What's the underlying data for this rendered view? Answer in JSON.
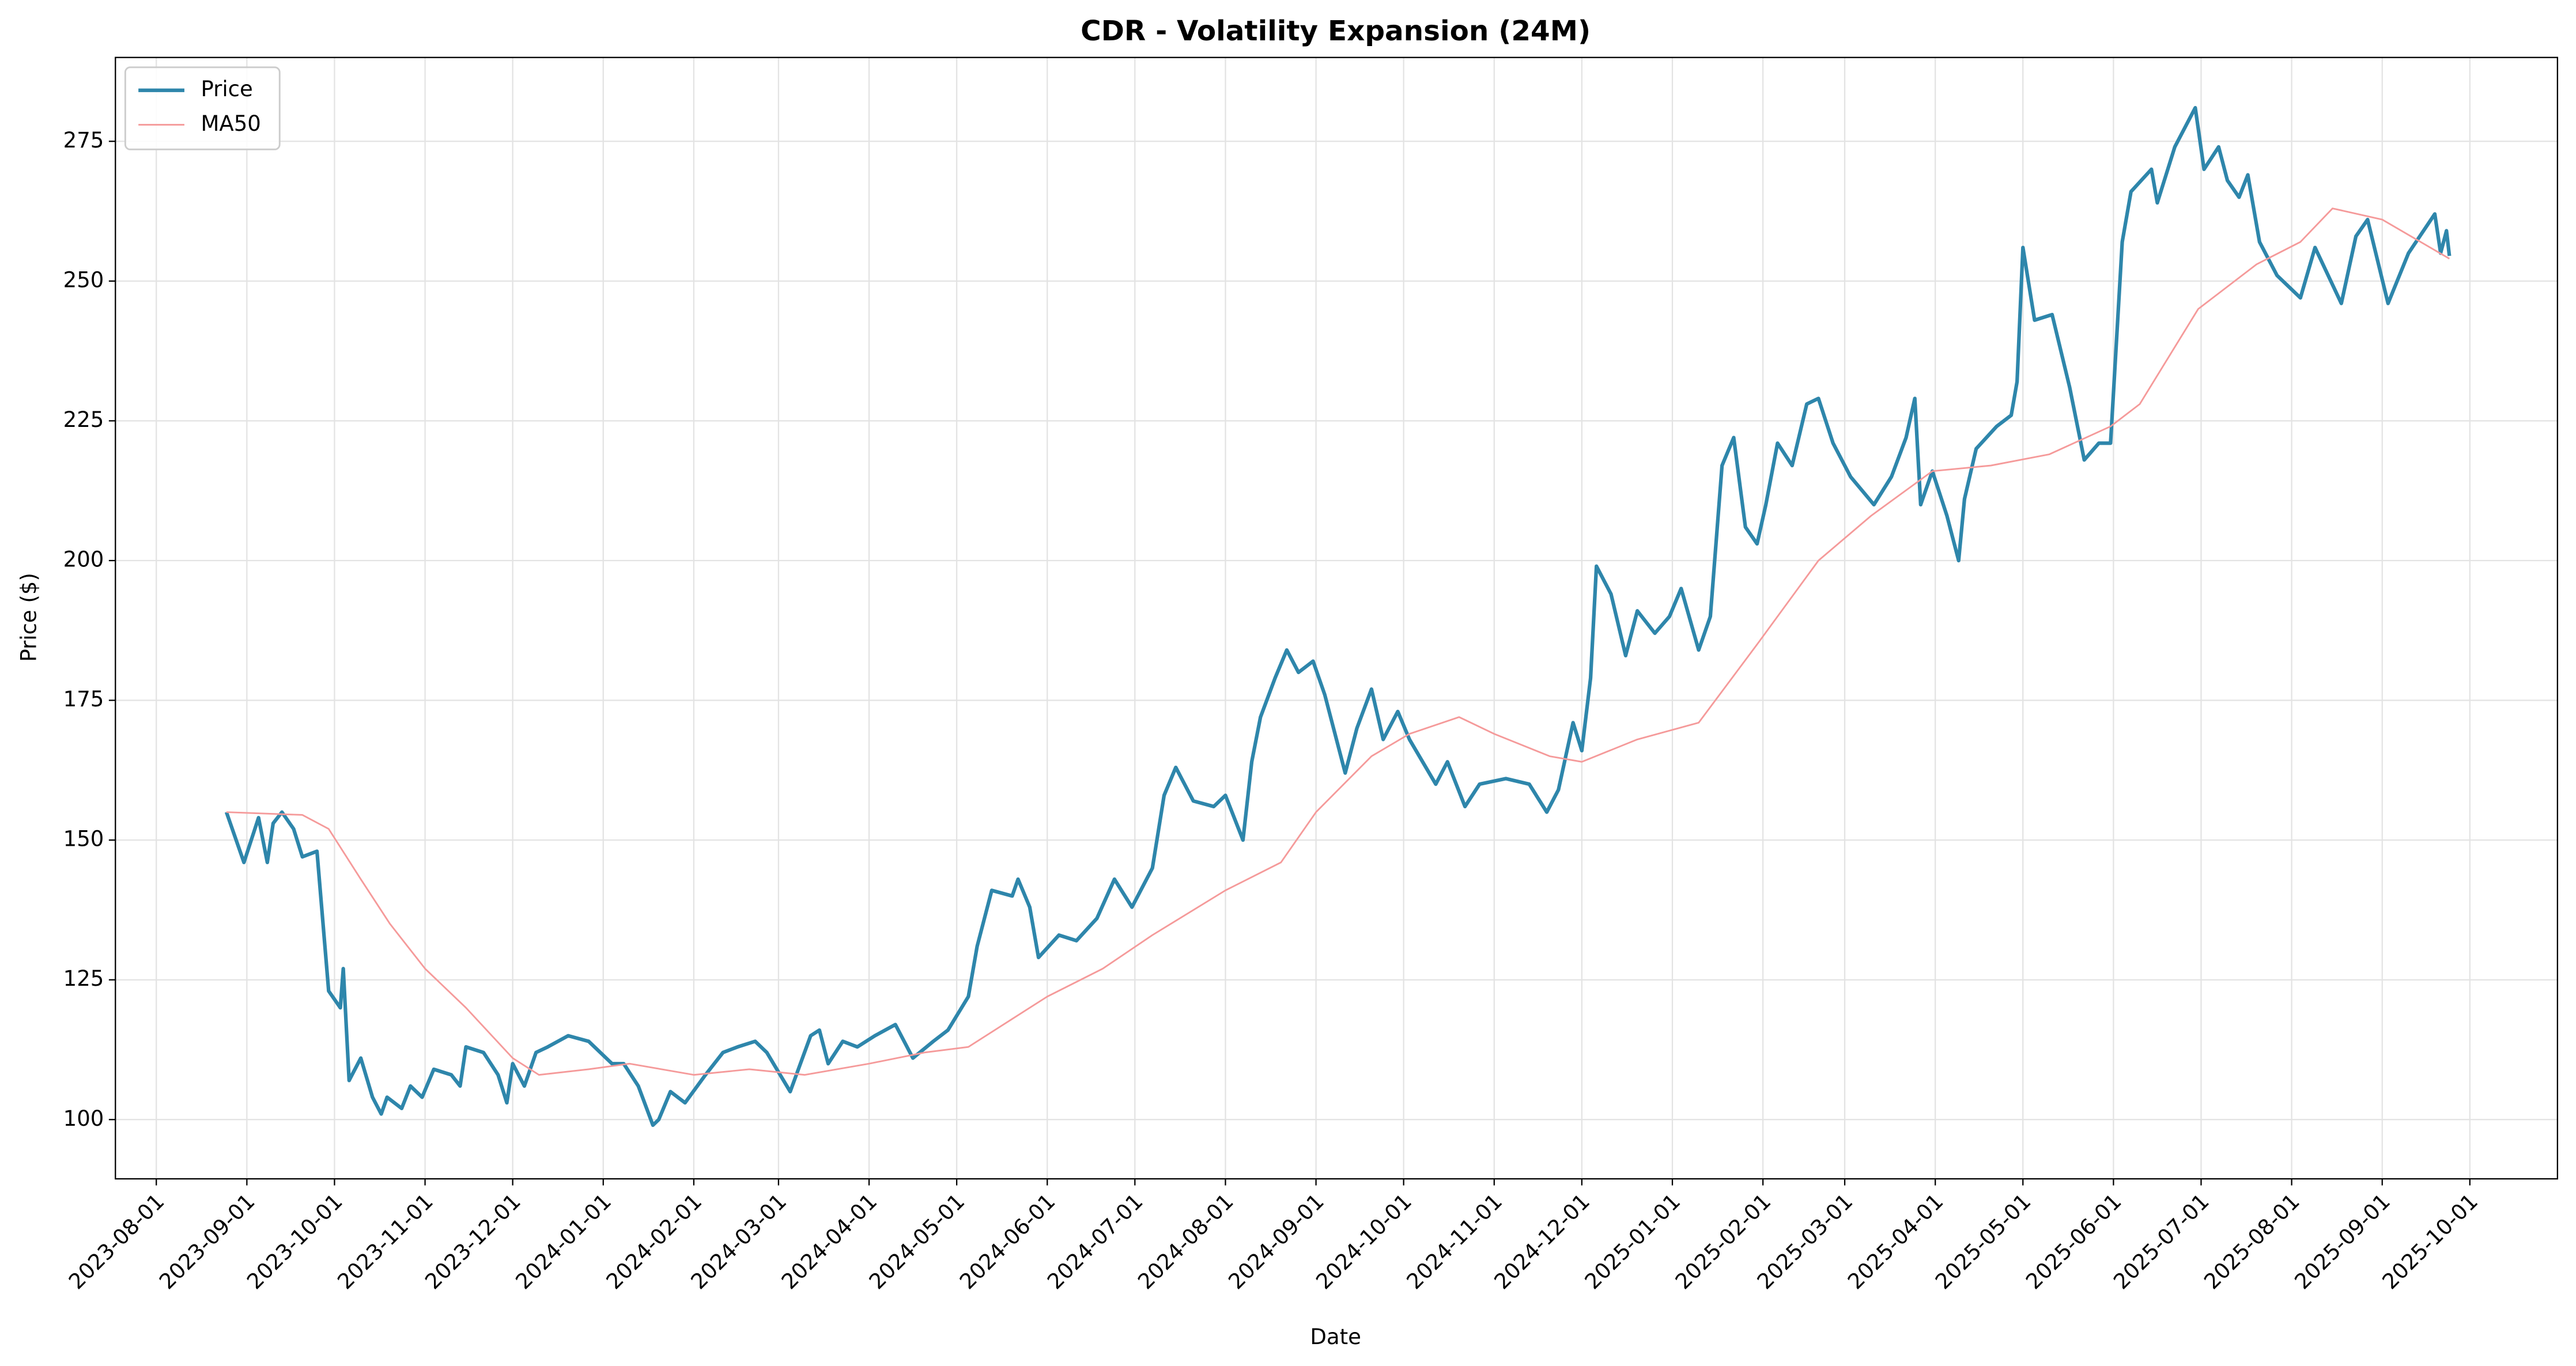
{
  "chart_data": {
    "type": "line",
    "title": "CDR - Volatility Expansion (24M)",
    "xlabel": "Date",
    "ylabel": "Price ($)",
    "xlim": [
      "2023-07-18",
      "2025-10-31"
    ],
    "ylim": [
      89.4,
      290
    ],
    "xticks": [
      "2023-08-01",
      "2023-09-01",
      "2023-10-01",
      "2023-11-01",
      "2023-12-01",
      "2024-01-01",
      "2024-02-01",
      "2024-03-01",
      "2024-04-01",
      "2024-05-01",
      "2024-06-01",
      "2024-07-01",
      "2024-08-01",
      "2024-09-01",
      "2024-10-01",
      "2024-11-01",
      "2024-12-01",
      "2025-01-01",
      "2025-02-01",
      "2025-03-01",
      "2025-04-01",
      "2025-05-01",
      "2025-06-01",
      "2025-07-01",
      "2025-08-01",
      "2025-09-01",
      "2025-10-01"
    ],
    "yticks": [
      100,
      125,
      150,
      175,
      200,
      225,
      250,
      275
    ],
    "grid": true,
    "legend": "upper left",
    "series": [
      {
        "name": "Price",
        "color": "#2e86ab",
        "width": 2.2,
        "x": [
          "2023-08-25",
          "2023-08-31",
          "2023-09-05",
          "2023-09-08",
          "2023-09-10",
          "2023-09-13",
          "2023-09-17",
          "2023-09-20",
          "2023-09-25",
          "2023-09-29",
          "2023-10-03",
          "2023-10-04",
          "2023-10-06",
          "2023-10-10",
          "2023-10-14",
          "2023-10-17",
          "2023-10-19",
          "2023-10-24",
          "2023-10-27",
          "2023-10-31",
          "2023-11-04",
          "2023-11-10",
          "2023-11-13",
          "2023-11-15",
          "2023-11-21",
          "2023-11-26",
          "2023-11-29",
          "2023-12-01",
          "2023-12-05",
          "2023-12-09",
          "2023-12-13",
          "2023-12-20",
          "2023-12-27",
          "2024-01-04",
          "2024-01-08",
          "2024-01-13",
          "2024-01-18",
          "2024-01-20",
          "2024-01-24",
          "2024-01-29",
          "2024-02-05",
          "2024-02-11",
          "2024-02-16",
          "2024-02-22",
          "2024-02-26",
          "2024-03-05",
          "2024-03-12",
          "2024-03-15",
          "2024-03-18",
          "2024-03-23",
          "2024-03-28",
          "2024-04-03",
          "2024-04-10",
          "2024-04-16",
          "2024-04-23",
          "2024-04-28",
          "2024-05-05",
          "2024-05-08",
          "2024-05-13",
          "2024-05-20",
          "2024-05-22",
          "2024-05-26",
          "2024-05-29",
          "2024-06-05",
          "2024-06-11",
          "2024-06-18",
          "2024-06-24",
          "2024-06-30",
          "2024-07-07",
          "2024-07-11",
          "2024-07-15",
          "2024-07-21",
          "2024-07-28",
          "2024-08-01",
          "2024-08-07",
          "2024-08-10",
          "2024-08-13",
          "2024-08-18",
          "2024-08-22",
          "2024-08-26",
          "2024-08-31",
          "2024-09-04",
          "2024-09-11",
          "2024-09-15",
          "2024-09-20",
          "2024-09-24",
          "2024-09-29",
          "2024-10-03",
          "2024-10-12",
          "2024-10-16",
          "2024-10-22",
          "2024-10-27",
          "2024-11-05",
          "2024-11-13",
          "2024-11-19",
          "2024-11-23",
          "2024-11-28",
          "2024-12-01",
          "2024-12-04",
          "2024-12-06",
          "2024-12-11",
          "2024-12-16",
          "2024-12-20",
          "2024-12-26",
          "2024-12-31",
          "2025-01-04",
          "2025-01-10",
          "2025-01-14",
          "2025-01-18",
          "2025-01-22",
          "2025-01-26",
          "2025-01-30",
          "2025-02-02",
          "2025-02-06",
          "2025-02-11",
          "2025-02-16",
          "2025-02-20",
          "2025-02-25",
          "2025-03-03",
          "2025-03-11",
          "2025-03-17",
          "2025-03-22",
          "2025-03-25",
          "2025-03-27",
          "2025-03-31",
          "2025-04-05",
          "2025-04-09",
          "2025-04-11",
          "2025-04-15",
          "2025-04-22",
          "2025-04-27",
          "2025-04-29",
          "2025-05-01",
          "2025-05-05",
          "2025-05-11",
          "2025-05-17",
          "2025-05-22",
          "2025-05-27",
          "2025-05-31",
          "2025-06-04",
          "2025-06-07",
          "2025-06-14",
          "2025-06-16",
          "2025-06-22",
          "2025-06-29",
          "2025-07-02",
          "2025-07-07",
          "2025-07-10",
          "2025-07-14",
          "2025-07-17",
          "2025-07-21",
          "2025-07-27",
          "2025-08-04",
          "2025-08-09",
          "2025-08-18",
          "2025-08-23",
          "2025-08-27",
          "2025-09-03",
          "2025-09-10",
          "2025-09-19",
          "2025-09-21",
          "2025-09-23",
          "2025-09-24"
        ],
        "values": [
          155,
          146,
          154,
          146,
          153,
          155,
          152,
          147,
          148,
          123,
          120,
          127,
          107,
          111,
          104,
          101,
          104,
          102,
          106,
          104,
          109,
          108,
          106,
          113,
          112,
          108,
          103,
          110,
          106,
          112,
          113,
          115,
          114,
          110,
          110,
          106,
          99,
          100,
          105,
          103,
          108,
          112,
          113,
          114,
          112,
          105,
          115,
          116,
          110,
          114,
          113,
          115,
          117,
          111,
          114,
          116,
          122,
          131,
          141,
          140,
          143,
          138,
          129,
          133,
          132,
          136,
          143,
          138,
          145,
          158,
          163,
          157,
          156,
          158,
          150,
          164,
          172,
          179,
          184,
          180,
          182,
          176,
          162,
          170,
          177,
          168,
          173,
          168,
          160,
          164,
          156,
          160,
          161,
          160,
          155,
          159,
          171,
          166,
          179,
          199,
          194,
          183,
          191,
          187,
          190,
          195,
          184,
          190,
          217,
          222,
          206,
          203,
          210,
          221,
          217,
          228,
          229,
          221,
          215,
          210,
          215,
          222,
          229,
          210,
          216,
          208,
          200,
          211,
          220,
          224,
          226,
          232,
          256,
          243,
          244,
          231,
          218,
          221,
          221,
          257,
          266,
          270,
          264,
          274,
          281,
          270,
          274,
          268,
          265,
          269,
          257,
          251,
          247,
          256,
          246,
          258,
          261,
          246,
          255,
          262,
          255,
          259,
          254.5
        ]
      },
      {
        "name": "MA50",
        "color": "#f59a9a",
        "width": 1,
        "x": [
          "2023-08-25",
          "2023-09-20",
          "2023-09-29",
          "2023-10-10",
          "2023-10-20",
          "2023-11-01",
          "2023-11-15",
          "2023-12-01",
          "2023-12-10",
          "2023-12-27",
          "2024-01-10",
          "2024-02-01",
          "2024-02-20",
          "2024-03-10",
          "2024-04-01",
          "2024-04-20",
          "2024-05-05",
          "2024-05-20",
          "2024-06-01",
          "2024-06-20",
          "2024-07-07",
          "2024-08-01",
          "2024-08-20",
          "2024-09-01",
          "2024-09-20",
          "2024-10-03",
          "2024-10-20",
          "2024-11-01",
          "2024-11-20",
          "2024-12-01",
          "2024-12-20",
          "2025-01-10",
          "2025-01-30",
          "2025-02-20",
          "2025-03-10",
          "2025-03-31",
          "2025-04-20",
          "2025-05-10",
          "2025-05-31",
          "2025-06-10",
          "2025-06-30",
          "2025-07-20",
          "2025-08-04",
          "2025-08-15",
          "2025-09-01",
          "2025-09-24"
        ],
        "values": [
          155,
          154.5,
          152,
          143,
          135,
          127,
          120,
          111,
          108,
          109,
          110,
          108,
          109,
          108,
          110,
          112,
          113,
          118,
          122,
          127,
          133,
          141,
          146,
          155,
          165,
          169,
          172,
          169,
          165,
          164,
          168,
          171,
          185,
          200,
          208,
          216,
          217,
          219,
          224,
          228,
          245,
          253,
          257,
          263,
          261,
          254
        ]
      }
    ]
  }
}
